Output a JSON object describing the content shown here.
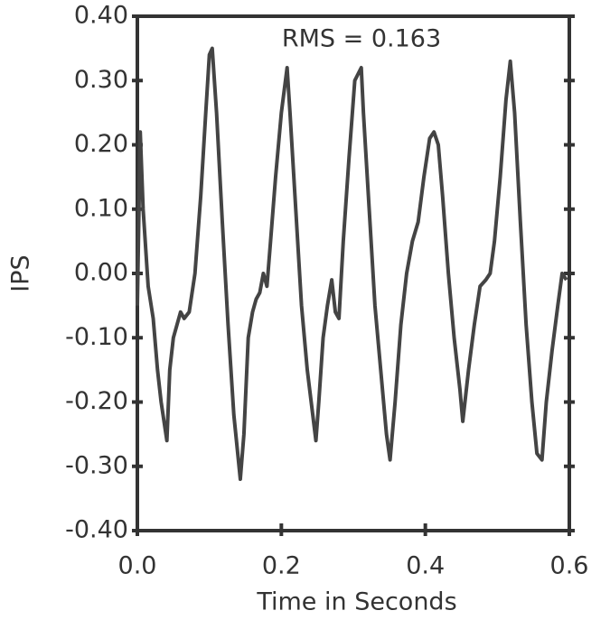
{
  "chart_data": {
    "type": "line",
    "annotation": "RMS = 0.163",
    "xlabel": "Time in Seconds",
    "ylabel": "IPS",
    "x": [
      0.0,
      0.004,
      0.008,
      0.015,
      0.022,
      0.028,
      0.033,
      0.041,
      0.045,
      0.05,
      0.055,
      0.06,
      0.065,
      0.072,
      0.08,
      0.088,
      0.095,
      0.1,
      0.104,
      0.11,
      0.118,
      0.126,
      0.134,
      0.143,
      0.148,
      0.154,
      0.16,
      0.165,
      0.17,
      0.175,
      0.18,
      0.185,
      0.192,
      0.2,
      0.208,
      0.212,
      0.22,
      0.228,
      0.236,
      0.248,
      0.252,
      0.258,
      0.264,
      0.27,
      0.275,
      0.28,
      0.286,
      0.294,
      0.302,
      0.311,
      0.314,
      0.322,
      0.33,
      0.338,
      0.346,
      0.351,
      0.358,
      0.366,
      0.374,
      0.382,
      0.39,
      0.398,
      0.406,
      0.412,
      0.418,
      0.424,
      0.432,
      0.44,
      0.448,
      0.452,
      0.46,
      0.468,
      0.476,
      0.484,
      0.49,
      0.496,
      0.504,
      0.512,
      0.518,
      0.524,
      0.532,
      0.54,
      0.548,
      0.555,
      0.562,
      0.568,
      0.576,
      0.584,
      0.59,
      0.596
    ],
    "series": [
      {
        "name": "IPS",
        "color": "#444444",
        "values": [
          -0.05,
          0.22,
          0.1,
          -0.02,
          -0.07,
          -0.15,
          -0.2,
          -0.26,
          -0.15,
          -0.1,
          -0.08,
          -0.06,
          -0.07,
          -0.06,
          0.0,
          0.12,
          0.25,
          0.34,
          0.35,
          0.25,
          0.08,
          -0.08,
          -0.22,
          -0.32,
          -0.25,
          -0.1,
          -0.06,
          -0.04,
          -0.03,
          0.0,
          -0.02,
          0.05,
          0.15,
          0.25,
          0.32,
          0.25,
          0.1,
          -0.05,
          -0.15,
          -0.26,
          -0.2,
          -0.1,
          -0.05,
          -0.01,
          -0.06,
          -0.07,
          0.05,
          0.18,
          0.3,
          0.32,
          0.25,
          0.1,
          -0.05,
          -0.15,
          -0.25,
          -0.29,
          -0.2,
          -0.08,
          0.0,
          0.05,
          0.08,
          0.15,
          0.21,
          0.22,
          0.2,
          0.12,
          0.0,
          -0.1,
          -0.18,
          -0.23,
          -0.15,
          -0.08,
          -0.02,
          -0.01,
          0.0,
          0.05,
          0.15,
          0.27,
          0.33,
          0.25,
          0.08,
          -0.08,
          -0.2,
          -0.28,
          -0.29,
          -0.2,
          -0.12,
          -0.05,
          0.0,
          -0.01
        ]
      }
    ],
    "xlim": [
      0,
      0.6
    ],
    "xticks": [
      {
        "value": 0,
        "label": "0.0"
      },
      {
        "value": 0.2,
        "label": "0.2"
      },
      {
        "value": 0.4,
        "label": "0.4"
      },
      {
        "value": 0.6,
        "label": "0.6"
      }
    ],
    "ylim": [
      -0.4,
      0.4
    ],
    "yticks": [
      {
        "value": 0.4,
        "label": "0.40"
      },
      {
        "value": 0.3,
        "label": "0.30"
      },
      {
        "value": 0.2,
        "label": "0.20"
      },
      {
        "value": 0.1,
        "label": "0.10"
      },
      {
        "value": 0,
        "label": "0.00"
      },
      {
        "value": -0.1,
        "label": "-0.10"
      },
      {
        "value": -0.2,
        "label": "-0.20"
      },
      {
        "value": -0.3,
        "label": "-0.30"
      },
      {
        "value": -0.4,
        "label": "-0.40"
      }
    ]
  }
}
